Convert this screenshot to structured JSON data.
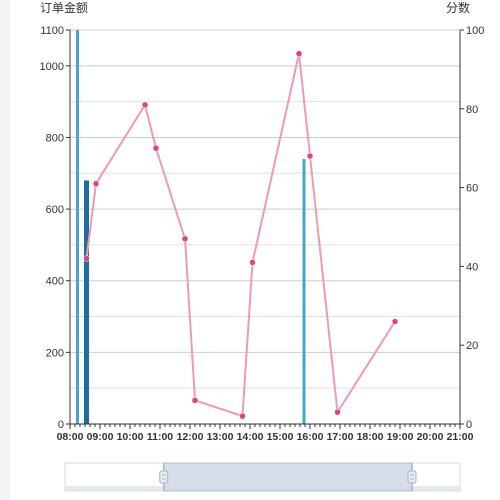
{
  "chart_data": {
    "type": "bar+line",
    "y_left_label": "订单金额",
    "y_right_label": "分数",
    "y_left_range": [
      0,
      1100
    ],
    "y_left_ticks": [
      0,
      200,
      400,
      600,
      800,
      1000,
      1100
    ],
    "y_right_range": [
      0,
      100
    ],
    "y_right_ticks": [
      0,
      20,
      40,
      60,
      80,
      100
    ],
    "x_range": [
      "08:00",
      "21:00"
    ],
    "x_ticks": [
      "08:00",
      "09:00",
      "10:00",
      "11:00",
      "12:00",
      "13:00",
      "14:00",
      "15:00",
      "16:00",
      "17:00",
      "18:00",
      "19:00",
      "20:00",
      "21:00"
    ],
    "grid": true,
    "bars_series": [
      {
        "name": "",
        "color": "#4aa3c8",
        "points": [
          {
            "t": "08:15",
            "value": 1100
          },
          {
            "t": "08:15",
            "value": 555
          },
          {
            "t": "15:48",
            "value": 740
          }
        ]
      },
      {
        "name": "",
        "color": "#1a6f9e",
        "points": [
          {
            "t": "08:33",
            "value": 680
          }
        ]
      }
    ],
    "line_series": {
      "name": "",
      "color": "#ef9ab2",
      "marker_color": "#e0457a",
      "points": [
        {
          "t": "08:33",
          "value": 42
        },
        {
          "t": "08:52",
          "value": 61
        },
        {
          "t": "10:30",
          "value": 81
        },
        {
          "t": "10:52",
          "value": 70
        },
        {
          "t": "11:50",
          "value": 47
        },
        {
          "t": "12:10",
          "value": 6
        },
        {
          "t": "13:45",
          "value": 2
        },
        {
          "t": "14:05",
          "value": 41
        },
        {
          "t": "15:38",
          "value": 94
        },
        {
          "t": "16:00",
          "value": 68
        },
        {
          "t": "16:55",
          "value": 3
        },
        {
          "t": "18:50",
          "value": 26
        }
      ]
    },
    "data_zoom": {
      "start": 0.25,
      "end": 1.0
    }
  }
}
